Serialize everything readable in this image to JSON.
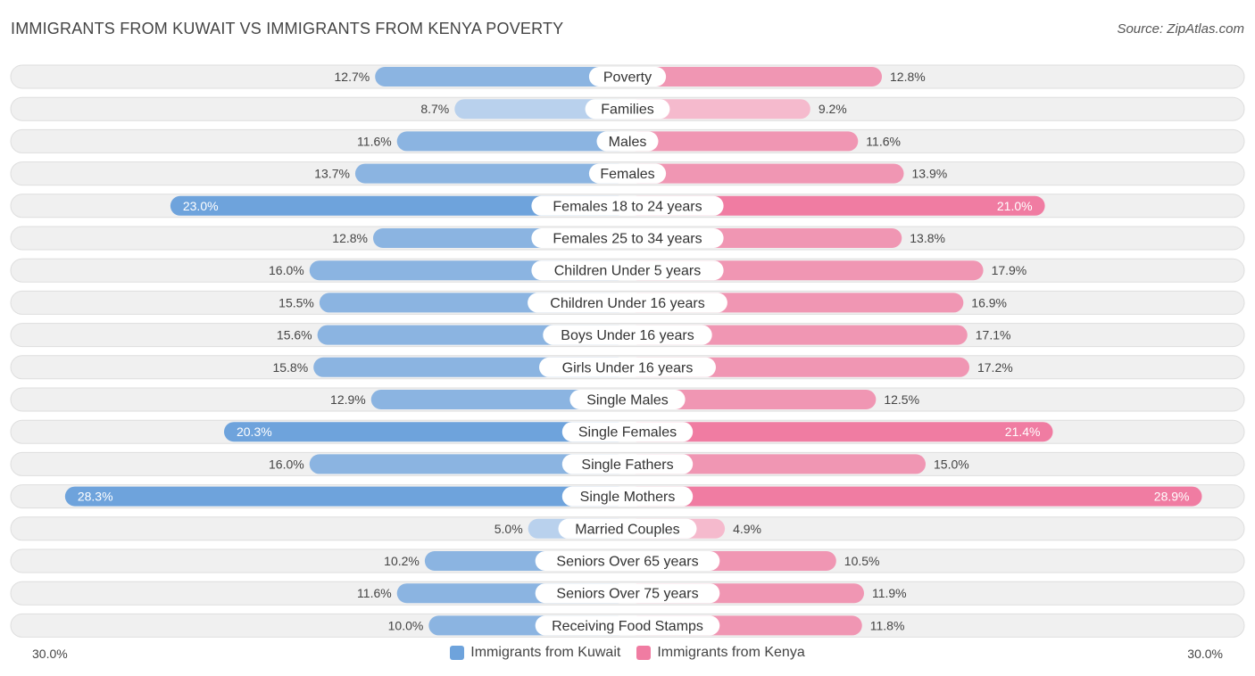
{
  "header": {
    "title": "IMMIGRANTS FROM KUWAIT VS IMMIGRANTS FROM KENYA POVERTY",
    "source": "Source: ZipAtlas.com"
  },
  "colors": {
    "kuwait": "#6ea3dc",
    "kuwait_light": "#a9c8ec",
    "kenya": "#f07ca2",
    "kenya_light": "#f6aac3",
    "row_bg": "#f0f0f0",
    "row_border": "#dedede"
  },
  "legend": {
    "kuwait_label": "Immigrants from Kuwait",
    "kenya_label": "Immigrants from Kenya"
  },
  "axis": {
    "left_label": "30.0%",
    "right_label": "30.0%"
  },
  "chart_data": {
    "type": "bar",
    "orientation": "horizontal-diverging",
    "title": "IMMIGRANTS FROM KUWAIT VS IMMIGRANTS FROM KENYA POVERTY",
    "xlim": [
      0,
      30
    ],
    "categories": [
      "Poverty",
      "Families",
      "Males",
      "Females",
      "Females 18 to 24 years",
      "Females 25 to 34 years",
      "Children Under 5 years",
      "Children Under 16 years",
      "Boys Under 16 years",
      "Girls Under 16 years",
      "Single Males",
      "Single Females",
      "Single Fathers",
      "Single Mothers",
      "Married Couples",
      "Seniors Over 65 years",
      "Seniors Over 75 years",
      "Receiving Food Stamps"
    ],
    "series": [
      {
        "name": "Immigrants from Kuwait",
        "values": [
          12.7,
          8.7,
          11.6,
          13.7,
          23.0,
          12.8,
          16.0,
          15.5,
          15.6,
          15.8,
          12.9,
          20.3,
          16.0,
          28.3,
          5.0,
          10.2,
          11.6,
          10.0
        ],
        "labels": [
          "12.7%",
          "8.7%",
          "11.6%",
          "13.7%",
          "23.0%",
          "12.8%",
          "16.0%",
          "15.5%",
          "15.6%",
          "15.8%",
          "12.9%",
          "20.3%",
          "16.0%",
          "28.3%",
          "5.0%",
          "10.2%",
          "11.6%",
          "10.0%"
        ]
      },
      {
        "name": "Immigrants from Kenya",
        "values": [
          12.8,
          9.2,
          11.6,
          13.9,
          21.0,
          13.8,
          17.9,
          16.9,
          17.1,
          17.2,
          12.5,
          21.4,
          15.0,
          28.9,
          4.9,
          10.5,
          11.9,
          11.8
        ],
        "labels": [
          "12.8%",
          "9.2%",
          "11.6%",
          "13.9%",
          "21.0%",
          "13.8%",
          "17.9%",
          "16.9%",
          "17.1%",
          "17.2%",
          "12.5%",
          "21.4%",
          "15.0%",
          "28.9%",
          "4.9%",
          "10.5%",
          "11.9%",
          "11.8%"
        ]
      }
    ]
  }
}
